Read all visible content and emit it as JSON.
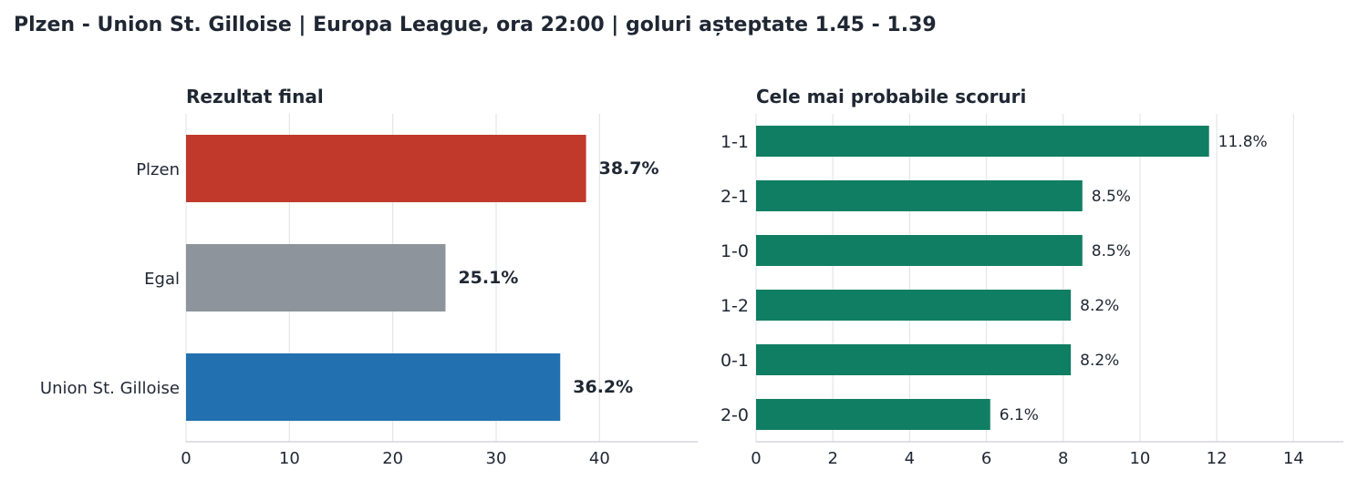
{
  "title": "Plzen - Union St. Gilloise   |   Europa League, ora 22:00   |   goluri așteptate 1.45 - 1.39",
  "chart_data": [
    {
      "type": "bar",
      "orientation": "horizontal",
      "title": "Rezultat final",
      "categories": [
        "Plzen",
        "Egal",
        "Union St. Gilloise"
      ],
      "values": [
        38.7,
        25.1,
        36.2
      ],
      "labels": [
        "38.7%",
        "25.1%",
        "36.2%"
      ],
      "colors": [
        "#c0392b",
        "#8e949b",
        "#2270b0"
      ],
      "xlim": [
        0,
        49.5
      ],
      "xticks": [
        0,
        10,
        20,
        30,
        40
      ],
      "grid": true
    },
    {
      "type": "bar",
      "orientation": "horizontal",
      "title": "Cele mai probabile scoruri",
      "categories": [
        "1-1",
        "2-1",
        "1-0",
        "1-2",
        "0-1",
        "2-0"
      ],
      "values": [
        11.8,
        8.5,
        8.5,
        8.2,
        8.2,
        6.1
      ],
      "labels": [
        "11.8%",
        "8.5%",
        "8.5%",
        "8.2%",
        "8.2%",
        "6.1%"
      ],
      "colors": [
        "#107e62"
      ],
      "xlim": [
        0,
        15.3
      ],
      "xticks": [
        0,
        2,
        4,
        6,
        8,
        10,
        12,
        14
      ],
      "grid": true
    }
  ]
}
